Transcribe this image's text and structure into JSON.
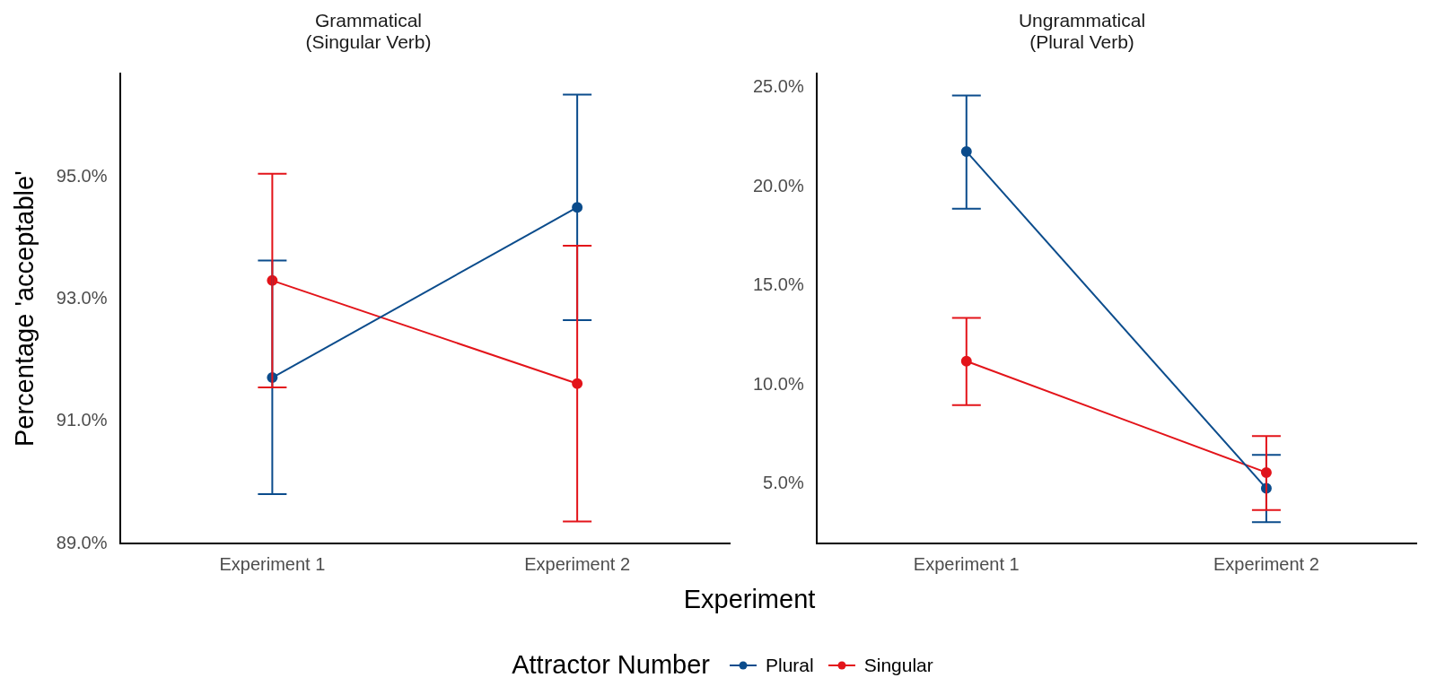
{
  "chart_data": [
    {
      "type": "line",
      "title": "Grammatical\n(Singular Verb)",
      "ylabel": "Percentage 'acceptable'",
      "xlabel": "Experiment",
      "legend_title": "Attractor Number",
      "legend": "bottom",
      "grid": false,
      "marker": "circle",
      "categories": [
        "Experiment 1",
        "Experiment 2"
      ],
      "ylim": [
        89,
        96.7
      ],
      "yticks": [
        {
          "value": 89,
          "label": "89.0%"
        },
        {
          "value": 91,
          "label": "91.0%"
        },
        {
          "value": 93,
          "label": "93.0%"
        },
        {
          "value": 95,
          "label": "95.0%"
        }
      ],
      "series": [
        {
          "name": "Plural",
          "color": "#0b4c8c",
          "values": [
            91.72,
            94.51
          ],
          "errors": [
            [
              89.81,
              93.64
            ],
            [
              92.66,
              96.36
            ]
          ]
        },
        {
          "name": "Singular",
          "color": "#e3141a",
          "values": [
            93.31,
            91.62
          ],
          "errors": [
            [
              91.56,
              95.06
            ],
            [
              89.36,
              93.88
            ]
          ]
        }
      ]
    },
    {
      "type": "line",
      "title": "Ungrammatical\n(Plural Verb)",
      "grid": false,
      "marker": "circle",
      "categories": [
        "Experiment 1",
        "Experiment 2"
      ],
      "ylim": [
        2,
        25.7
      ],
      "yticks": [
        {
          "value": 5,
          "label": "5.0%"
        },
        {
          "value": 10,
          "label": "10.0%"
        },
        {
          "value": 15,
          "label": "15.0%"
        },
        {
          "value": 20,
          "label": "20.0%"
        },
        {
          "value": 25,
          "label": "25.0%"
        }
      ],
      "series": [
        {
          "color": "#0b4c8c",
          "values": [
            21.78,
            4.78
          ],
          "errors": [
            [
              18.89,
              24.6
            ],
            [
              3.07,
              6.47
            ]
          ]
        },
        {
          "color": "#e3141a",
          "values": [
            11.2,
            5.58
          ],
          "errors": [
            [
              8.98,
              13.38
            ],
            [
              3.69,
              7.42
            ]
          ]
        }
      ]
    }
  ]
}
